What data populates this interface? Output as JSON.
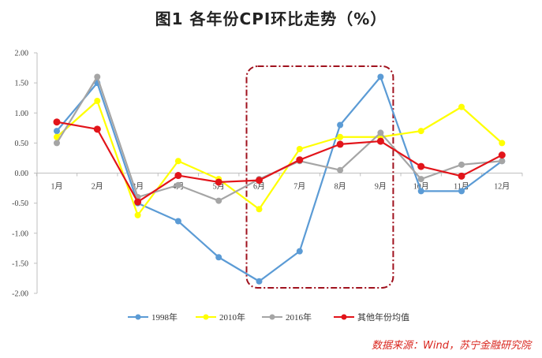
{
  "chart_data": {
    "type": "line",
    "title": "图1  各年份CPI环比走势（%）",
    "categories": [
      "1月",
      "2月",
      "3月",
      "4月",
      "5月",
      "6月",
      "7月",
      "8月",
      "9月",
      "10月",
      "11月",
      "12月"
    ],
    "ylim": [
      -2.0,
      2.0
    ],
    "yticks": [
      "2.00",
      "1.50",
      "1.00",
      "0.50",
      "0.00",
      "-0.50",
      "-1.00",
      "-1.50",
      "-2.00"
    ],
    "grid": false,
    "legend_position": "bottom",
    "series": [
      {
        "name": "1998年",
        "color": "#5b9bd5",
        "values": [
          0.7,
          1.5,
          -0.5,
          -0.8,
          -1.4,
          -1.8,
          -1.3,
          0.8,
          1.6,
          -0.3,
          -0.3,
          0.2
        ]
      },
      {
        "name": "2010年",
        "color": "#ffff00",
        "values": [
          0.6,
          1.2,
          -0.7,
          0.2,
          -0.1,
          -0.6,
          0.4,
          0.6,
          0.6,
          0.7,
          1.1,
          0.5
        ]
      },
      {
        "name": "2016年",
        "color": "#a5a5a5",
        "values": [
          0.5,
          1.6,
          -0.4,
          -0.2,
          -0.46,
          -0.1,
          0.2,
          0.05,
          0.67,
          -0.1,
          0.14,
          0.2
        ]
      },
      {
        "name": "其他年份均值",
        "color": "#e2141a",
        "values": [
          0.85,
          0.73,
          -0.48,
          -0.04,
          -0.15,
          -0.12,
          0.22,
          0.48,
          0.53,
          0.11,
          -0.05,
          0.3
        ]
      }
    ],
    "highlight_box": {
      "from": "6月",
      "to": "9月",
      "color": "#a0121e"
    }
  },
  "source": "数据来源：Wind，苏宁金融研究院"
}
